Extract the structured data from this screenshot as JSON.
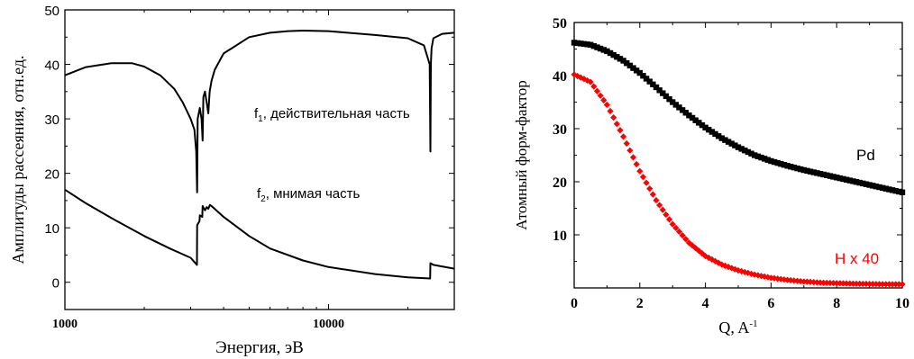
{
  "chart_data": [
    {
      "type": "line",
      "xscale": "log",
      "xlim": [
        1000,
        30000
      ],
      "ylim": [
        -5,
        50
      ],
      "xlabel": "Энергия, эВ",
      "ylabel": "Амплитуды рассеяния, отн.ед.",
      "x_ticks": [
        1000,
        10000
      ],
      "x_tick_labels": [
        "1000",
        "10000"
      ],
      "y_ticks": [
        0,
        10,
        20,
        30,
        40,
        50
      ],
      "y_tick_labels": [
        "0",
        "10",
        "20",
        "30",
        "40",
        "50"
      ],
      "grid": false,
      "series": [
        {
          "id": "f1",
          "color": "#000000",
          "annotation_base": "f",
          "annotation_sub": "1",
          "annotation_text": ", действительная часть",
          "x": [
            1000,
            1200,
            1500,
            1800,
            2000,
            2300,
            2600,
            2800,
            3000,
            3100,
            3150,
            3173,
            3190,
            3250,
            3300,
            3330,
            3350,
            3400,
            3450,
            3500,
            3540,
            3600,
            3700,
            4000,
            5000,
            6000,
            7000,
            8000,
            10000,
            15000,
            20000,
            23000,
            24200,
            24350,
            24450,
            24600,
            25000,
            27000,
            30000
          ],
          "y": [
            38,
            39.5,
            40.2,
            40.2,
            39.6,
            38,
            35.5,
            33,
            30,
            28,
            24,
            16.5,
            30,
            32,
            30,
            26,
            34,
            35,
            33,
            31,
            35,
            37,
            39,
            42,
            45,
            45.8,
            46.1,
            46.2,
            46.1,
            45.4,
            44.8,
            43.5,
            40,
            24,
            40,
            43,
            44.8,
            45.6,
            45.8
          ]
        },
        {
          "id": "f2",
          "color": "#000000",
          "annotation_base": "f",
          "annotation_sub": "2",
          "annotation_text": ", мнимая часть",
          "x": [
            1000,
            1200,
            1500,
            2000,
            2500,
            3000,
            3170,
            3175,
            3240,
            3250,
            3320,
            3330,
            3400,
            3450,
            3500,
            3550,
            3600,
            4000,
            5000,
            6000,
            8000,
            10000,
            15000,
            20000,
            24300,
            24350,
            25000,
            30000
          ],
          "y": [
            17,
            14.5,
            11.8,
            8.5,
            6.2,
            4.5,
            3.2,
            10.5,
            11.2,
            12.3,
            12,
            14,
            13.2,
            13.8,
            13.5,
            14.2,
            14,
            12,
            8.5,
            6.2,
            4,
            2.8,
            1.5,
            0.9,
            0.7,
            3.5,
            3.2,
            2.5
          ]
        }
      ]
    },
    {
      "type": "scatter",
      "xlim": [
        0,
        10
      ],
      "ylim": [
        0,
        50
      ],
      "xlabel_base": "Q, A",
      "xlabel_sup": "-1",
      "ylabel": "Атомный форм-фактор",
      "x_ticks": [
        0,
        2,
        4,
        6,
        8,
        10
      ],
      "x_tick_labels": [
        "0",
        "2",
        "4",
        "6",
        "8",
        "10"
      ],
      "y_ticks": [
        10,
        20,
        30,
        40,
        50
      ],
      "y_tick_labels": [
        "10",
        "20",
        "30",
        "40",
        "50"
      ],
      "grid": false,
      "series": [
        {
          "id": "Pd",
          "name": "Pd",
          "color": "#000000",
          "marker": "square",
          "x": [
            0,
            0.5,
            1,
            1.5,
            2,
            2.5,
            3,
            3.5,
            4,
            4.5,
            5,
            5.5,
            6,
            6.5,
            7,
            7.5,
            8,
            8.5,
            9,
            9.5,
            10
          ],
          "y": [
            46.2,
            45.8,
            44.6,
            42.8,
            40.5,
            37.8,
            35,
            32.5,
            30.2,
            28.2,
            26.5,
            25,
            23.9,
            23,
            22.2,
            21.5,
            20.8,
            20.1,
            19.4,
            18.7,
            18
          ]
        },
        {
          "id": "H",
          "name": "H x 40",
          "color": "#ff0000",
          "marker": "diamond",
          "x": [
            0,
            0.5,
            1,
            1.5,
            2,
            2.5,
            3,
            3.5,
            4,
            4.5,
            5,
            5.5,
            6,
            6.5,
            7,
            7.5,
            8,
            8.5,
            9,
            9.5,
            10
          ],
          "y": [
            40.2,
            38.8,
            34.5,
            28.5,
            22,
            16.5,
            12,
            8.5,
            6,
            4.4,
            3.3,
            2.5,
            1.9,
            1.5,
            1.2,
            1,
            0.9,
            0.8,
            0.75,
            0.7,
            0.7
          ]
        }
      ]
    }
  ]
}
